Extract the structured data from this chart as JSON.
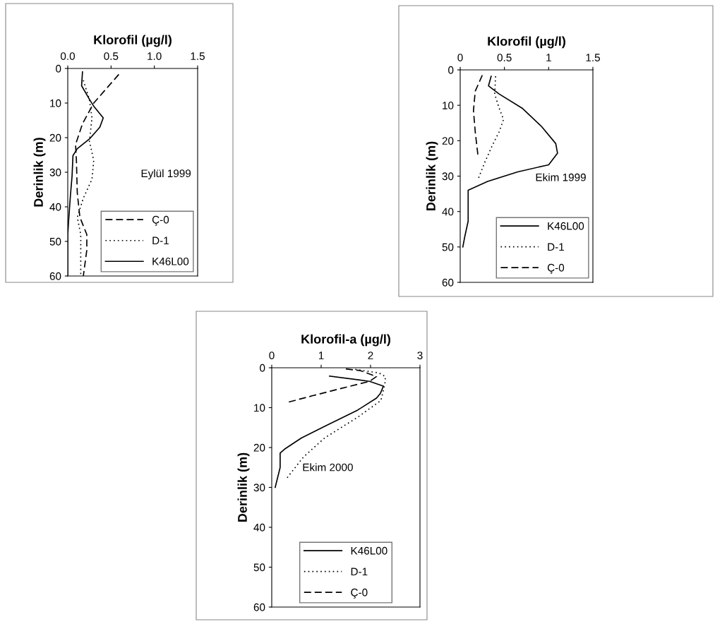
{
  "chart_data": [
    {
      "type": "line",
      "xlabel": "Klorofil (µg/l)",
      "ylabel": "Derinlik (m)",
      "annotations": [
        "Eylül 1999"
      ],
      "xlim": [
        0,
        1.5
      ],
      "xticks": [
        {
          "value": 0,
          "label": "0.0"
        },
        0.5,
        {
          "value": 1,
          "label": "1.0"
        },
        1.5
      ],
      "ylim": [
        60,
        0
      ],
      "yticks": [
        0,
        10,
        20,
        30,
        40,
        50,
        60
      ],
      "legend": "bottom right",
      "grid": false,
      "series": [
        {
          "name": "Ç-0",
          "color": "#000000",
          "line_style": "dashed",
          "x": [
            0.59,
            0.3,
            0.17,
            0.09,
            0.1,
            0.11,
            0.14,
            0.22,
            0.22,
            0.18
          ],
          "values": [
            1.7,
            10,
            16,
            22,
            26.6,
            36,
            43,
            48,
            52.5,
            60
          ]
        },
        {
          "name": "D-1",
          "color": "#000000",
          "line_style": "dotted",
          "x": [
            0.18,
            0.25,
            0.28,
            0.25,
            0.3,
            0.28,
            0.18,
            0.11,
            0.15,
            0.15
          ],
          "values": [
            3.4,
            9,
            14.3,
            21,
            26.6,
            32,
            37.5,
            43,
            48,
            60
          ]
        },
        {
          "name": "K46L00",
          "color": "#000000",
          "line_style": "solid",
          "x": [
            0.17,
            0.16,
            0.25,
            0.3,
            0.41,
            0.37,
            0.25,
            0.11,
            0.06,
            0.05,
            0.03,
            0.01,
            0,
            0
          ],
          "values": [
            1,
            5,
            8.9,
            10.9,
            14.3,
            17,
            20.4,
            23.2,
            25.2,
            31,
            37,
            44,
            48,
            60
          ]
        }
      ]
    },
    {
      "type": "line",
      "xlabel": "Klorofil (µg/l)",
      "ylabel": "Derinlik (m)",
      "annotations": [
        "Ekim 1999"
      ],
      "xlim": [
        0,
        1.5
      ],
      "xticks": [
        0,
        0.5,
        1,
        1.5
      ],
      "ylim": [
        60,
        0
      ],
      "yticks": [
        0,
        10,
        20,
        30,
        40,
        50,
        60
      ],
      "legend": "bottom right",
      "grid": false,
      "series": [
        {
          "name": "K46L00",
          "color": "#000000",
          "line_style": "solid",
          "x": [
            0.35,
            0.32,
            0.44,
            0.7,
            0.92,
            1.08,
            1.1,
            1.0,
            0.65,
            0.31,
            0.09,
            0.09,
            0.09,
            0.05,
            0.03
          ],
          "values": [
            1.8,
            4.5,
            6.8,
            10.8,
            16,
            20.8,
            23.5,
            26.8,
            28.8,
            31.5,
            34,
            35.3,
            42.7,
            47.3,
            50
          ]
        },
        {
          "name": "D-1",
          "color": "#000000",
          "line_style": "dotted",
          "x": [
            0.4,
            0.39,
            0.44,
            0.49,
            0.44,
            0.36,
            0.28,
            0.2
          ],
          "values": [
            1.8,
            6.8,
            10.8,
            14,
            17.5,
            21.5,
            26,
            31
          ]
        },
        {
          "name": "Ç-0",
          "color": "#000000",
          "line_style": "dashed",
          "x": [
            0.25,
            0.17,
            0.15,
            0.17,
            0.2
          ],
          "values": [
            1.5,
            6,
            11.5,
            17.5,
            24
          ]
        }
      ]
    },
    {
      "type": "line",
      "xlabel": "Klorofil-a (µg/l)",
      "ylabel": "Derinlik (m)",
      "annotations": [
        "Ekim 2000"
      ],
      "xlim": [
        0,
        3
      ],
      "xticks": [
        0,
        1,
        2,
        3
      ],
      "ylim": [
        60,
        0
      ],
      "yticks": [
        0,
        10,
        20,
        30,
        40,
        50,
        60
      ],
      "legend": "bottom",
      "grid": false,
      "series": [
        {
          "name": "K46L00",
          "color": "#000000",
          "line_style": "solid",
          "x": [
            1.17,
            1.98,
            2.26,
            2.2,
            2.12,
            1.74,
            1.07,
            0.6,
            0.26,
            0.17,
            0.17,
            0.07
          ],
          "values": [
            2.1,
            3.4,
            4.6,
            6.4,
            7.6,
            10.6,
            14.7,
            17.6,
            20.4,
            21.4,
            25,
            30
          ]
        },
        {
          "name": "D-1",
          "color": "#000000",
          "line_style": "dotted",
          "x": [
            1.69,
            2.17,
            2.3,
            2.29,
            2.21,
            1.74,
            1.07,
            0.64,
            0.31
          ],
          "values": [
            0.4,
            1.3,
            2.2,
            4,
            8.2,
            12.4,
            17.6,
            22.4,
            27.6
          ]
        },
        {
          "name": "Ç-0",
          "color": "#000000",
          "line_style": "dashed",
          "x": [
            1.5,
            1.79,
            2.12,
            1.98,
            1.4,
            0.83,
            0.31
          ],
          "values": [
            0.3,
            0.7,
            2.2,
            3.4,
            5.2,
            7,
            8.7
          ]
        }
      ]
    }
  ]
}
